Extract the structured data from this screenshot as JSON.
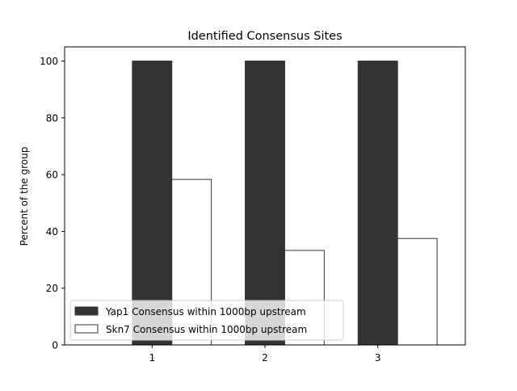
{
  "chart_data": {
    "type": "bar",
    "title": "Identified Consensus Sites",
    "xlabel": "",
    "ylabel": "Percent of the group",
    "categories": [
      "1",
      "2",
      "3"
    ],
    "ylim": [
      0,
      105
    ],
    "yticks": [
      "0",
      "20",
      "40",
      "60",
      "80",
      "100"
    ],
    "grid": false,
    "legend_position": "lower-left",
    "series": [
      {
        "name": "Yap1 Consensus within 1000bp upstream",
        "values": [
          100,
          100,
          100
        ],
        "color": "#333333"
      },
      {
        "name": "Skn7 Consensus within 1000bp upstream",
        "values": [
          58.3,
          33.3,
          37.5
        ],
        "color": "#ffffff"
      }
    ]
  }
}
